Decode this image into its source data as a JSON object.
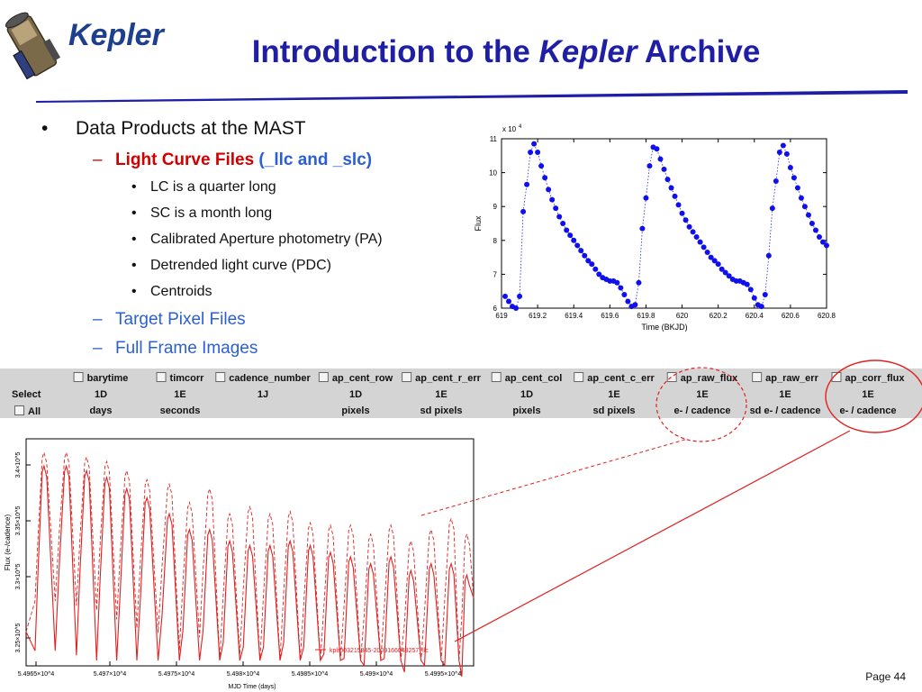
{
  "header": {
    "logo_text": "Kepler",
    "title_pre": "Introduction to the ",
    "title_italic": "Kepler",
    "title_post": " Archive"
  },
  "bullets": {
    "level1": "Data Products at the MAST",
    "lc_label": "Light Curve Files",
    "lc_suffix": "(_llc and _slc)",
    "sub": [
      "LC is a quarter long",
      "SC is a month long",
      "Calibrated Aperture photometry (PA)",
      "Detrended light curve (PDC)",
      "Centroids"
    ],
    "tpf": "Target Pixel Files",
    "ffi": "Full Frame Images"
  },
  "table": {
    "columns": [
      {
        "name": "barytime",
        "format": "1D",
        "unit": "days"
      },
      {
        "name": "timcorr",
        "format": "1E",
        "unit": "seconds"
      },
      {
        "name": "cadence_number",
        "format": "1J",
        "unit": ""
      },
      {
        "name": "ap_cent_row",
        "format": "1D",
        "unit": "pixels"
      },
      {
        "name": "ap_cent_r_err",
        "format": "1E",
        "unit": "sd pixels"
      },
      {
        "name": "ap_cent_col",
        "format": "1D",
        "unit": "pixels"
      },
      {
        "name": "ap_cent_c_err",
        "format": "1E",
        "unit": "sd pixels"
      },
      {
        "name": "ap_raw_flux",
        "format": "1E",
        "unit": "e- / cadence"
      },
      {
        "name": "ap_raw_err",
        "format": "1E",
        "unit": "sd e- / cadence"
      },
      {
        "name": "ap_corr_flux",
        "format": "1E",
        "unit": "e- / cadence"
      }
    ],
    "select_label": "Select",
    "all_label": "All"
  },
  "chart_data": [
    {
      "type": "scatter",
      "xlabel": "Time (BKJD)",
      "ylabel": "Flux",
      "multiplier": "x 10^4",
      "xlim": [
        619,
        620.8
      ],
      "ylim": [
        6,
        11
      ],
      "xticks": [
        "619",
        "619.2",
        "619.4",
        "619.6",
        "619.8",
        "620",
        "620.2",
        "620.4",
        "620.6",
        "620.8"
      ],
      "yticks": [
        "6",
        "7",
        "8",
        "9",
        "10",
        "11"
      ],
      "x": [
        619.02,
        619.04,
        619.06,
        619.08,
        619.1,
        619.12,
        619.14,
        619.16,
        619.18,
        619.2,
        619.22,
        619.24,
        619.26,
        619.28,
        619.3,
        619.32,
        619.34,
        619.36,
        619.38,
        619.4,
        619.42,
        619.44,
        619.46,
        619.48,
        619.5,
        619.52,
        619.54,
        619.56,
        619.58,
        619.6,
        619.62,
        619.64,
        619.66,
        619.68,
        619.7,
        619.72,
        619.74,
        619.76,
        619.78,
        619.8,
        619.82,
        619.84,
        619.86,
        619.88,
        619.9,
        619.92,
        619.94,
        619.96,
        619.98,
        620.0,
        620.02,
        620.04,
        620.06,
        620.08,
        620.1,
        620.12,
        620.14,
        620.16,
        620.18,
        620.2,
        620.22,
        620.24,
        620.26,
        620.28,
        620.3,
        620.32,
        620.34,
        620.36,
        620.38,
        620.4,
        620.42,
        620.44,
        620.46,
        620.48,
        620.5,
        620.52,
        620.54,
        620.56,
        620.58,
        620.6,
        620.62,
        620.64,
        620.66,
        620.68,
        620.7,
        620.72,
        620.74,
        620.76,
        620.78,
        620.8
      ],
      "y": [
        6.35,
        6.2,
        6.05,
        6.0,
        6.35,
        8.85,
        9.65,
        10.6,
        10.85,
        10.6,
        10.2,
        9.85,
        9.5,
        9.2,
        8.95,
        8.7,
        8.5,
        8.3,
        8.15,
        8.0,
        7.85,
        7.7,
        7.55,
        7.4,
        7.3,
        7.15,
        7.0,
        6.9,
        6.85,
        6.8,
        6.8,
        6.75,
        6.6,
        6.4,
        6.2,
        6.05,
        6.1,
        6.75,
        8.35,
        9.25,
        10.2,
        10.75,
        10.7,
        10.4,
        10.1,
        9.8,
        9.55,
        9.3,
        9.05,
        8.8,
        8.6,
        8.4,
        8.25,
        8.1,
        7.95,
        7.8,
        7.65,
        7.5,
        7.4,
        7.3,
        7.15,
        7.05,
        6.95,
        6.85,
        6.8,
        6.8,
        6.75,
        6.7,
        6.55,
        6.3,
        6.1,
        6.05,
        6.4,
        7.55,
        8.95,
        9.75,
        10.6,
        10.8,
        10.55,
        10.15,
        9.85,
        9.55,
        9.25,
        9.0,
        8.75,
        8.5,
        8.3,
        8.1,
        7.95,
        7.85
      ]
    },
    {
      "type": "line",
      "xlabel": "MJD Time (days)",
      "ylabel": "Flux (e-/cadence)",
      "xticks": [
        "5.4965×10^4",
        "5.497×10^4",
        "5.4975×10^4",
        "5.498×10^4",
        "5.4985×10^4",
        "5.499×10^4",
        "5.4995×10^4"
      ],
      "yticks": [
        "3.25×10^5",
        "3.3×10^5",
        "3.35×10^5",
        "3.4×10^5"
      ],
      "legend": "kplr003215845-2009166043257_llc",
      "series": [
        {
          "style": "solid",
          "peaks": [
            [
              0.04,
              0.12
            ],
            [
              0.09,
              0.12
            ],
            [
              0.135,
              0.14
            ],
            [
              0.18,
              0.17
            ],
            [
              0.225,
              0.22
            ],
            [
              0.27,
              0.26
            ],
            [
              0.32,
              0.33
            ],
            [
              0.365,
              0.4
            ],
            [
              0.41,
              0.4
            ],
            [
              0.455,
              0.45
            ],
            [
              0.5,
              0.47
            ],
            [
              0.545,
              0.47
            ],
            [
              0.59,
              0.45
            ],
            [
              0.635,
              0.47
            ],
            [
              0.68,
              0.5
            ],
            [
              0.725,
              0.52
            ],
            [
              0.77,
              0.55
            ],
            [
              0.815,
              0.52
            ],
            [
              0.86,
              0.58
            ],
            [
              0.905,
              0.55
            ],
            [
              0.95,
              0.55
            ],
            [
              0.985,
              0.6
            ]
          ]
        },
        {
          "style": "dashed",
          "peaks": [
            [
              0.04,
              0.06
            ],
            [
              0.09,
              0.06
            ],
            [
              0.135,
              0.08
            ],
            [
              0.18,
              0.1
            ],
            [
              0.225,
              0.14
            ],
            [
              0.27,
              0.18
            ],
            [
              0.32,
              0.2
            ],
            [
              0.365,
              0.28
            ],
            [
              0.41,
              0.22
            ],
            [
              0.455,
              0.33
            ],
            [
              0.5,
              0.3
            ],
            [
              0.545,
              0.33
            ],
            [
              0.59,
              0.32
            ],
            [
              0.635,
              0.37
            ],
            [
              0.68,
              0.38
            ],
            [
              0.725,
              0.38
            ],
            [
              0.77,
              0.42
            ],
            [
              0.815,
              0.38
            ],
            [
              0.86,
              0.45
            ],
            [
              0.905,
              0.4
            ],
            [
              0.95,
              0.35
            ],
            [
              0.985,
              0.42
            ]
          ]
        }
      ]
    }
  ],
  "footer": {
    "page": "Page 44"
  }
}
